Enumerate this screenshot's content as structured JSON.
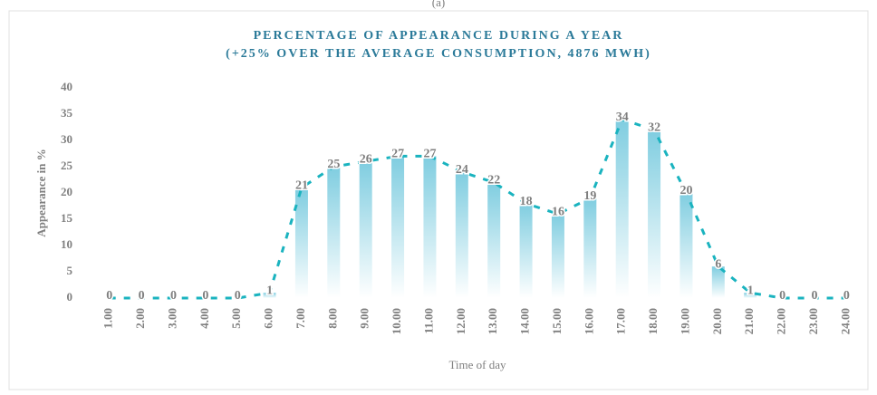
{
  "chart_data": {
    "type": "bar_line",
    "caption": "(a)",
    "title": "PERCENTAGE OF APPEARANCE DURING A YEAR",
    "subtitle": "(+25% OVER THE AVERAGE CONSUMPTION, 4876 MWH)",
    "x_label": "Time of day",
    "y_label": "Appearance in %",
    "categories": [
      "1.00",
      "2.00",
      "3.00",
      "4.00",
      "5.00",
      "6.00",
      "7.00",
      "8.00",
      "9.00",
      "10.00",
      "11.00",
      "12.00",
      "13.00",
      "14.00",
      "15.00",
      "16.00",
      "17.00",
      "18.00",
      "19.00",
      "20.00",
      "21.00",
      "22.00",
      "23.00",
      "24.00"
    ],
    "values": [
      0,
      0,
      0,
      0,
      0,
      1,
      21,
      25,
      26,
      27,
      27,
      24,
      22,
      18,
      16,
      19,
      34,
      32,
      20,
      6,
      1,
      0,
      0,
      0
    ],
    "color": "#1ab3bf",
    "bar_color": "#7fcde0",
    "ylim": [
      0,
      40
    ],
    "yticks": [
      0,
      5,
      10,
      15,
      20,
      25,
      30,
      35,
      40
    ],
    "grid": false
  }
}
